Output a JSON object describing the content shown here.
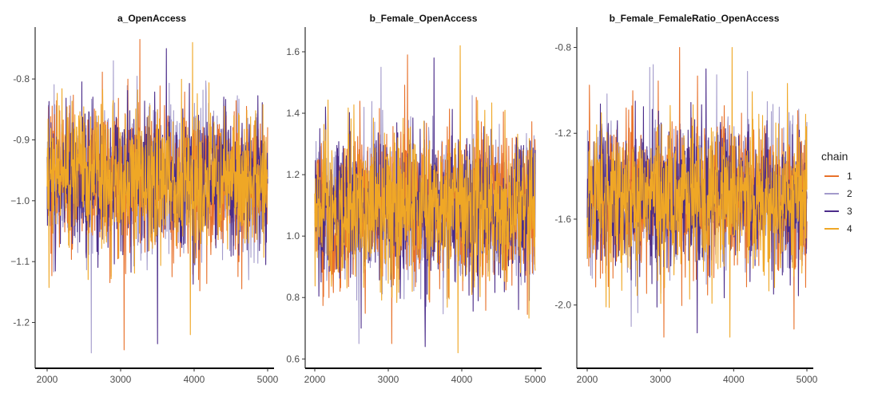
{
  "chart_data": {
    "type": "line",
    "title": "",
    "legend": {
      "title": "chain",
      "placement": "right",
      "entries": [
        {
          "name": "1",
          "color": "#E8712A"
        },
        {
          "name": "2",
          "color": "#A39BCB"
        },
        {
          "name": "3",
          "color": "#4B2C8A"
        },
        {
          "name": "4",
          "color": "#EFA726"
        }
      ]
    },
    "grid": false,
    "x_range": [
      2000,
      5000
    ],
    "panels": [
      {
        "title": "a_OpenAccess",
        "xticks": [
          "2000",
          "3000",
          "4000",
          "5000"
        ],
        "xtick_values": [
          2000,
          3000,
          4000,
          5000
        ],
        "yticks": [
          "-0.8",
          "-0.9",
          "−1.0",
          "−1.1",
          "-1.2"
        ],
        "ytick_values": [
          -0.8,
          -0.9,
          -1.0,
          -1.1,
          -1.2
        ],
        "ylim": [
          -1.27,
          -0.72
        ],
        "series": [
          {
            "name": "1",
            "mean": -0.965,
            "sd": 0.058,
            "min": -1.245,
            "max": -0.735
          },
          {
            "name": "2",
            "mean": -0.965,
            "sd": 0.058,
            "min": -1.25,
            "max": -0.77
          },
          {
            "name": "3",
            "mean": -0.965,
            "sd": 0.058,
            "min": -1.235,
            "max": -0.75
          },
          {
            "name": "4",
            "mean": -0.965,
            "sd": 0.058,
            "min": -1.22,
            "max": -0.74
          }
        ]
      },
      {
        "title": "b_Female_OpenAccess",
        "xticks": [
          "2000",
          "3000",
          "4000",
          "5000"
        ],
        "xtick_values": [
          2000,
          3000,
          4000,
          5000
        ],
        "yticks": [
          "1.6",
          "1.4",
          "1.2",
          "1.0",
          "0.8",
          "0.6"
        ],
        "ytick_values": [
          1.6,
          1.4,
          1.2,
          1.0,
          0.8,
          0.6
        ],
        "ylim": [
          0.58,
          1.67
        ],
        "series": [
          {
            "name": "1",
            "mean": 1.09,
            "sd": 0.12,
            "min": 0.65,
            "max": 1.59
          },
          {
            "name": "2",
            "mean": 1.09,
            "sd": 0.12,
            "min": 0.65,
            "max": 1.55
          },
          {
            "name": "3",
            "mean": 1.09,
            "sd": 0.12,
            "min": 0.64,
            "max": 1.58
          },
          {
            "name": "4",
            "mean": 1.09,
            "sd": 0.12,
            "min": 0.62,
            "max": 1.62
          }
        ]
      },
      {
        "title": "b_Female_FemaleRatio_OpenAccess",
        "xticks": [
          "2000",
          "3000",
          "4000",
          "5000"
        ],
        "xtick_values": [
          2000,
          3000,
          4000,
          5000
        ],
        "yticks": [
          "-0.8",
          "-1.2",
          "-1.6",
          "-2.0"
        ],
        "ytick_values": [
          -0.8,
          -1.2,
          -1.6,
          -2.0
        ],
        "ylim": [
          -2.28,
          -0.72
        ],
        "series": [
          {
            "name": "1",
            "mean": -1.49,
            "sd": 0.17,
            "min": -2.15,
            "max": -0.8
          },
          {
            "name": "2",
            "mean": -1.49,
            "sd": 0.17,
            "min": -2.1,
            "max": -0.88
          },
          {
            "name": "3",
            "mean": -1.49,
            "sd": 0.17,
            "min": -2.13,
            "max": -0.9
          },
          {
            "name": "4",
            "mean": -1.49,
            "sd": 0.17,
            "min": -2.15,
            "max": -0.8
          }
        ]
      }
    ]
  }
}
